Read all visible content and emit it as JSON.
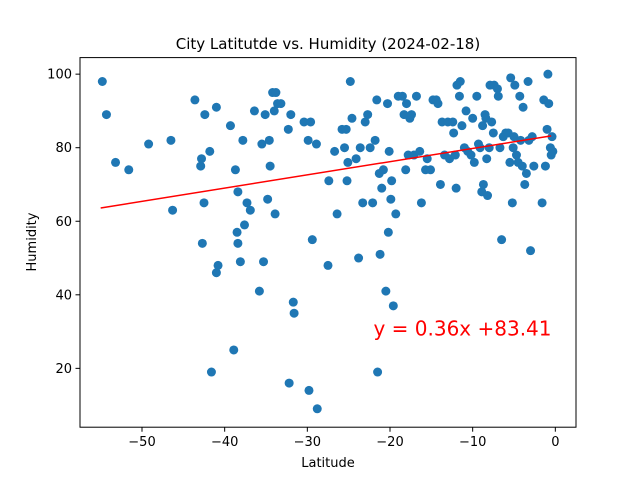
{
  "chart_data": {
    "type": "scatter",
    "title": "City Latitutde vs. Humidity (2024-02-18)",
    "xlabel": "Latitude",
    "ylabel": "Humidity",
    "xlim": [
      -57.5,
      2.5
    ],
    "ylim": [
      4,
      104.5
    ],
    "xticks": [
      -50,
      -40,
      -30,
      -20,
      -10,
      0
    ],
    "yticks": [
      20,
      40,
      60,
      80,
      100
    ],
    "grid": false,
    "point_color": "#1f77b4",
    "regression": {
      "slope": 0.36,
      "intercept": 83.41,
      "x_range": [
        -55,
        -0.5
      ],
      "color": "#ff0000",
      "label": "y = 0.36x +83.41",
      "label_position": [
        -22,
        30
      ]
    },
    "points": [
      [
        -54.8,
        98
      ],
      [
        -54.3,
        89
      ],
      [
        -53.2,
        76
      ],
      [
        -51.6,
        74
      ],
      [
        -49.2,
        81
      ],
      [
        -46.5,
        82
      ],
      [
        -46.3,
        63
      ],
      [
        -43.6,
        93
      ],
      [
        -42.9,
        75
      ],
      [
        -42.8,
        77
      ],
      [
        -42.7,
        54
      ],
      [
        -42.5,
        65
      ],
      [
        -42.4,
        89
      ],
      [
        -41.8,
        79
      ],
      [
        -41.6,
        19
      ],
      [
        -41.0,
        91
      ],
      [
        -41.0,
        46
      ],
      [
        -40.8,
        48
      ],
      [
        -39.3,
        86
      ],
      [
        -38.9,
        25
      ],
      [
        -38.7,
        74
      ],
      [
        -38.5,
        57
      ],
      [
        -38.4,
        68
      ],
      [
        -38.4,
        54
      ],
      [
        -38.1,
        49
      ],
      [
        -37.8,
        82
      ],
      [
        -37.6,
        59
      ],
      [
        -37.3,
        65
      ],
      [
        -36.9,
        63
      ],
      [
        -36.4,
        90
      ],
      [
        -35.8,
        41
      ],
      [
        -35.5,
        81
      ],
      [
        -35.3,
        49
      ],
      [
        -35.1,
        89
      ],
      [
        -34.8,
        66
      ],
      [
        -34.6,
        82
      ],
      [
        -34.5,
        75
      ],
      [
        -34.2,
        95
      ],
      [
        -34.0,
        90
      ],
      [
        -33.9,
        62
      ],
      [
        -33.8,
        95
      ],
      [
        -33.6,
        92
      ],
      [
        -33.2,
        92
      ],
      [
        -32.3,
        85
      ],
      [
        -32.2,
        16
      ],
      [
        -32.0,
        89
      ],
      [
        -31.7,
        38
      ],
      [
        -31.6,
        35
      ],
      [
        -30.4,
        87
      ],
      [
        -29.9,
        82
      ],
      [
        -29.8,
        14
      ],
      [
        -29.6,
        87
      ],
      [
        -29.4,
        55
      ],
      [
        -28.9,
        81
      ],
      [
        -28.8,
        9
      ],
      [
        -27.5,
        48
      ],
      [
        -27.4,
        71
      ],
      [
        -26.7,
        79
      ],
      [
        -26.4,
        62
      ],
      [
        -25.8,
        85
      ],
      [
        -25.5,
        80
      ],
      [
        -25.3,
        85
      ],
      [
        -25.2,
        71
      ],
      [
        -25.1,
        76
      ],
      [
        -24.8,
        98
      ],
      [
        -24.6,
        88
      ],
      [
        -24.1,
        77
      ],
      [
        -23.8,
        50
      ],
      [
        -23.6,
        80
      ],
      [
        -23.3,
        65
      ],
      [
        -23.0,
        87
      ],
      [
        -22.7,
        89
      ],
      [
        -22.4,
        80
      ],
      [
        -22.1,
        65
      ],
      [
        -21.8,
        82
      ],
      [
        -21.6,
        93
      ],
      [
        -21.5,
        19
      ],
      [
        -21.3,
        73
      ],
      [
        -21.2,
        51
      ],
      [
        -21.0,
        69
      ],
      [
        -20.8,
        74
      ],
      [
        -20.5,
        41
      ],
      [
        -20.3,
        92
      ],
      [
        -20.2,
        57
      ],
      [
        -20.1,
        79
      ],
      [
        -19.9,
        66
      ],
      [
        -19.8,
        71
      ],
      [
        -19.6,
        37
      ],
      [
        -19.3,
        62
      ],
      [
        -19.0,
        94
      ],
      [
        -18.5,
        94
      ],
      [
        -18.3,
        89
      ],
      [
        -18.1,
        74
      ],
      [
        -18.0,
        92
      ],
      [
        -17.8,
        78
      ],
      [
        -17.6,
        88
      ],
      [
        -17.4,
        89
      ],
      [
        -17.1,
        78
      ],
      [
        -16.8,
        94
      ],
      [
        -16.4,
        79
      ],
      [
        -16.2,
        65
      ],
      [
        -15.7,
        74
      ],
      [
        -15.5,
        77
      ],
      [
        -15.1,
        74
      ],
      [
        -14.8,
        93
      ],
      [
        -14.4,
        93
      ],
      [
        -14.2,
        92
      ],
      [
        -13.9,
        70
      ],
      [
        -13.7,
        87
      ],
      [
        -13.4,
        78
      ],
      [
        -13.0,
        87
      ],
      [
        -12.8,
        77
      ],
      [
        -12.4,
        87
      ],
      [
        -12.3,
        84
      ],
      [
        -12.1,
        78
      ],
      [
        -12.0,
        69
      ],
      [
        -11.9,
        97
      ],
      [
        -11.6,
        94
      ],
      [
        -11.5,
        98
      ],
      [
        -11.3,
        86
      ],
      [
        -11.0,
        80
      ],
      [
        -10.8,
        90
      ],
      [
        -10.6,
        79
      ],
      [
        -10.2,
        78
      ],
      [
        -10.0,
        88
      ],
      [
        -9.8,
        76
      ],
      [
        -9.5,
        94
      ],
      [
        -9.3,
        81
      ],
      [
        -9.1,
        80
      ],
      [
        -8.9,
        68
      ],
      [
        -8.8,
        86
      ],
      [
        -8.7,
        70
      ],
      [
        -8.5,
        89
      ],
      [
        -8.4,
        88
      ],
      [
        -8.3,
        77
      ],
      [
        -8.2,
        67
      ],
      [
        -8.0,
        80
      ],
      [
        -7.9,
        97
      ],
      [
        -7.7,
        87
      ],
      [
        -7.5,
        84
      ],
      [
        -7.4,
        97
      ],
      [
        -7.0,
        96
      ],
      [
        -6.9,
        94
      ],
      [
        -6.7,
        80
      ],
      [
        -6.5,
        55
      ],
      [
        -6.3,
        83
      ],
      [
        -6.0,
        84
      ],
      [
        -5.7,
        84
      ],
      [
        -5.5,
        76
      ],
      [
        -5.4,
        99
      ],
      [
        -5.2,
        65
      ],
      [
        -5.1,
        80
      ],
      [
        -5.0,
        83
      ],
      [
        -4.9,
        97
      ],
      [
        -4.7,
        78
      ],
      [
        -4.5,
        76
      ],
      [
        -4.3,
        94
      ],
      [
        -4.2,
        82
      ],
      [
        -4.0,
        75
      ],
      [
        -3.9,
        91
      ],
      [
        -3.7,
        70
      ],
      [
        -3.5,
        73
      ],
      [
        -3.3,
        98
      ],
      [
        -3.2,
        82
      ],
      [
        -3.0,
        52
      ],
      [
        -2.8,
        83
      ],
      [
        -2.6,
        75
      ],
      [
        -1.6,
        65
      ],
      [
        -1.4,
        93
      ],
      [
        -1.2,
        75
      ],
      [
        -1.0,
        85
      ],
      [
        -0.9,
        100
      ],
      [
        -0.8,
        92
      ],
      [
        -0.6,
        80
      ],
      [
        -0.5,
        78
      ],
      [
        -0.4,
        83
      ],
      [
        -0.3,
        79
      ]
    ]
  }
}
